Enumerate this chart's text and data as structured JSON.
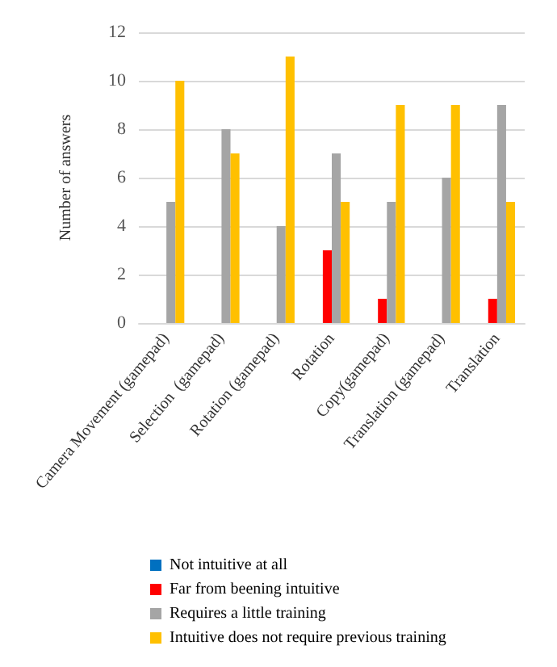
{
  "chart_data": {
    "type": "bar",
    "ylabel": "Number of answers",
    "categories": [
      "Camera Movement (gamepad)",
      "Selection  (gamepad)",
      "Rotation (gamepad)",
      "Rotation",
      "Copy(gamepad)",
      "Translation (gamepad)",
      "Translation"
    ],
    "series": [
      {
        "name": "Not intuitive at all",
        "color": "#0070c0",
        "values": [
          0,
          0,
          0,
          0,
          0,
          0,
          0
        ]
      },
      {
        "name": "Far from beening intuitive",
        "color": "#ff0000",
        "values": [
          0,
          0,
          0,
          3,
          1,
          0,
          1
        ]
      },
      {
        "name": "Requires a little training",
        "color": "#a5a5a5",
        "values": [
          5,
          8,
          4,
          7,
          5,
          6,
          9
        ]
      },
      {
        "name": "Intuitive does not require previous training",
        "color": "#ffc000",
        "values": [
          10,
          7,
          11,
          5,
          9,
          9,
          5
        ]
      }
    ],
    "ylim": [
      0,
      12
    ],
    "yticks": [
      0,
      2,
      4,
      6,
      8,
      10,
      12
    ],
    "grid": "y",
    "legend": "bottom"
  }
}
